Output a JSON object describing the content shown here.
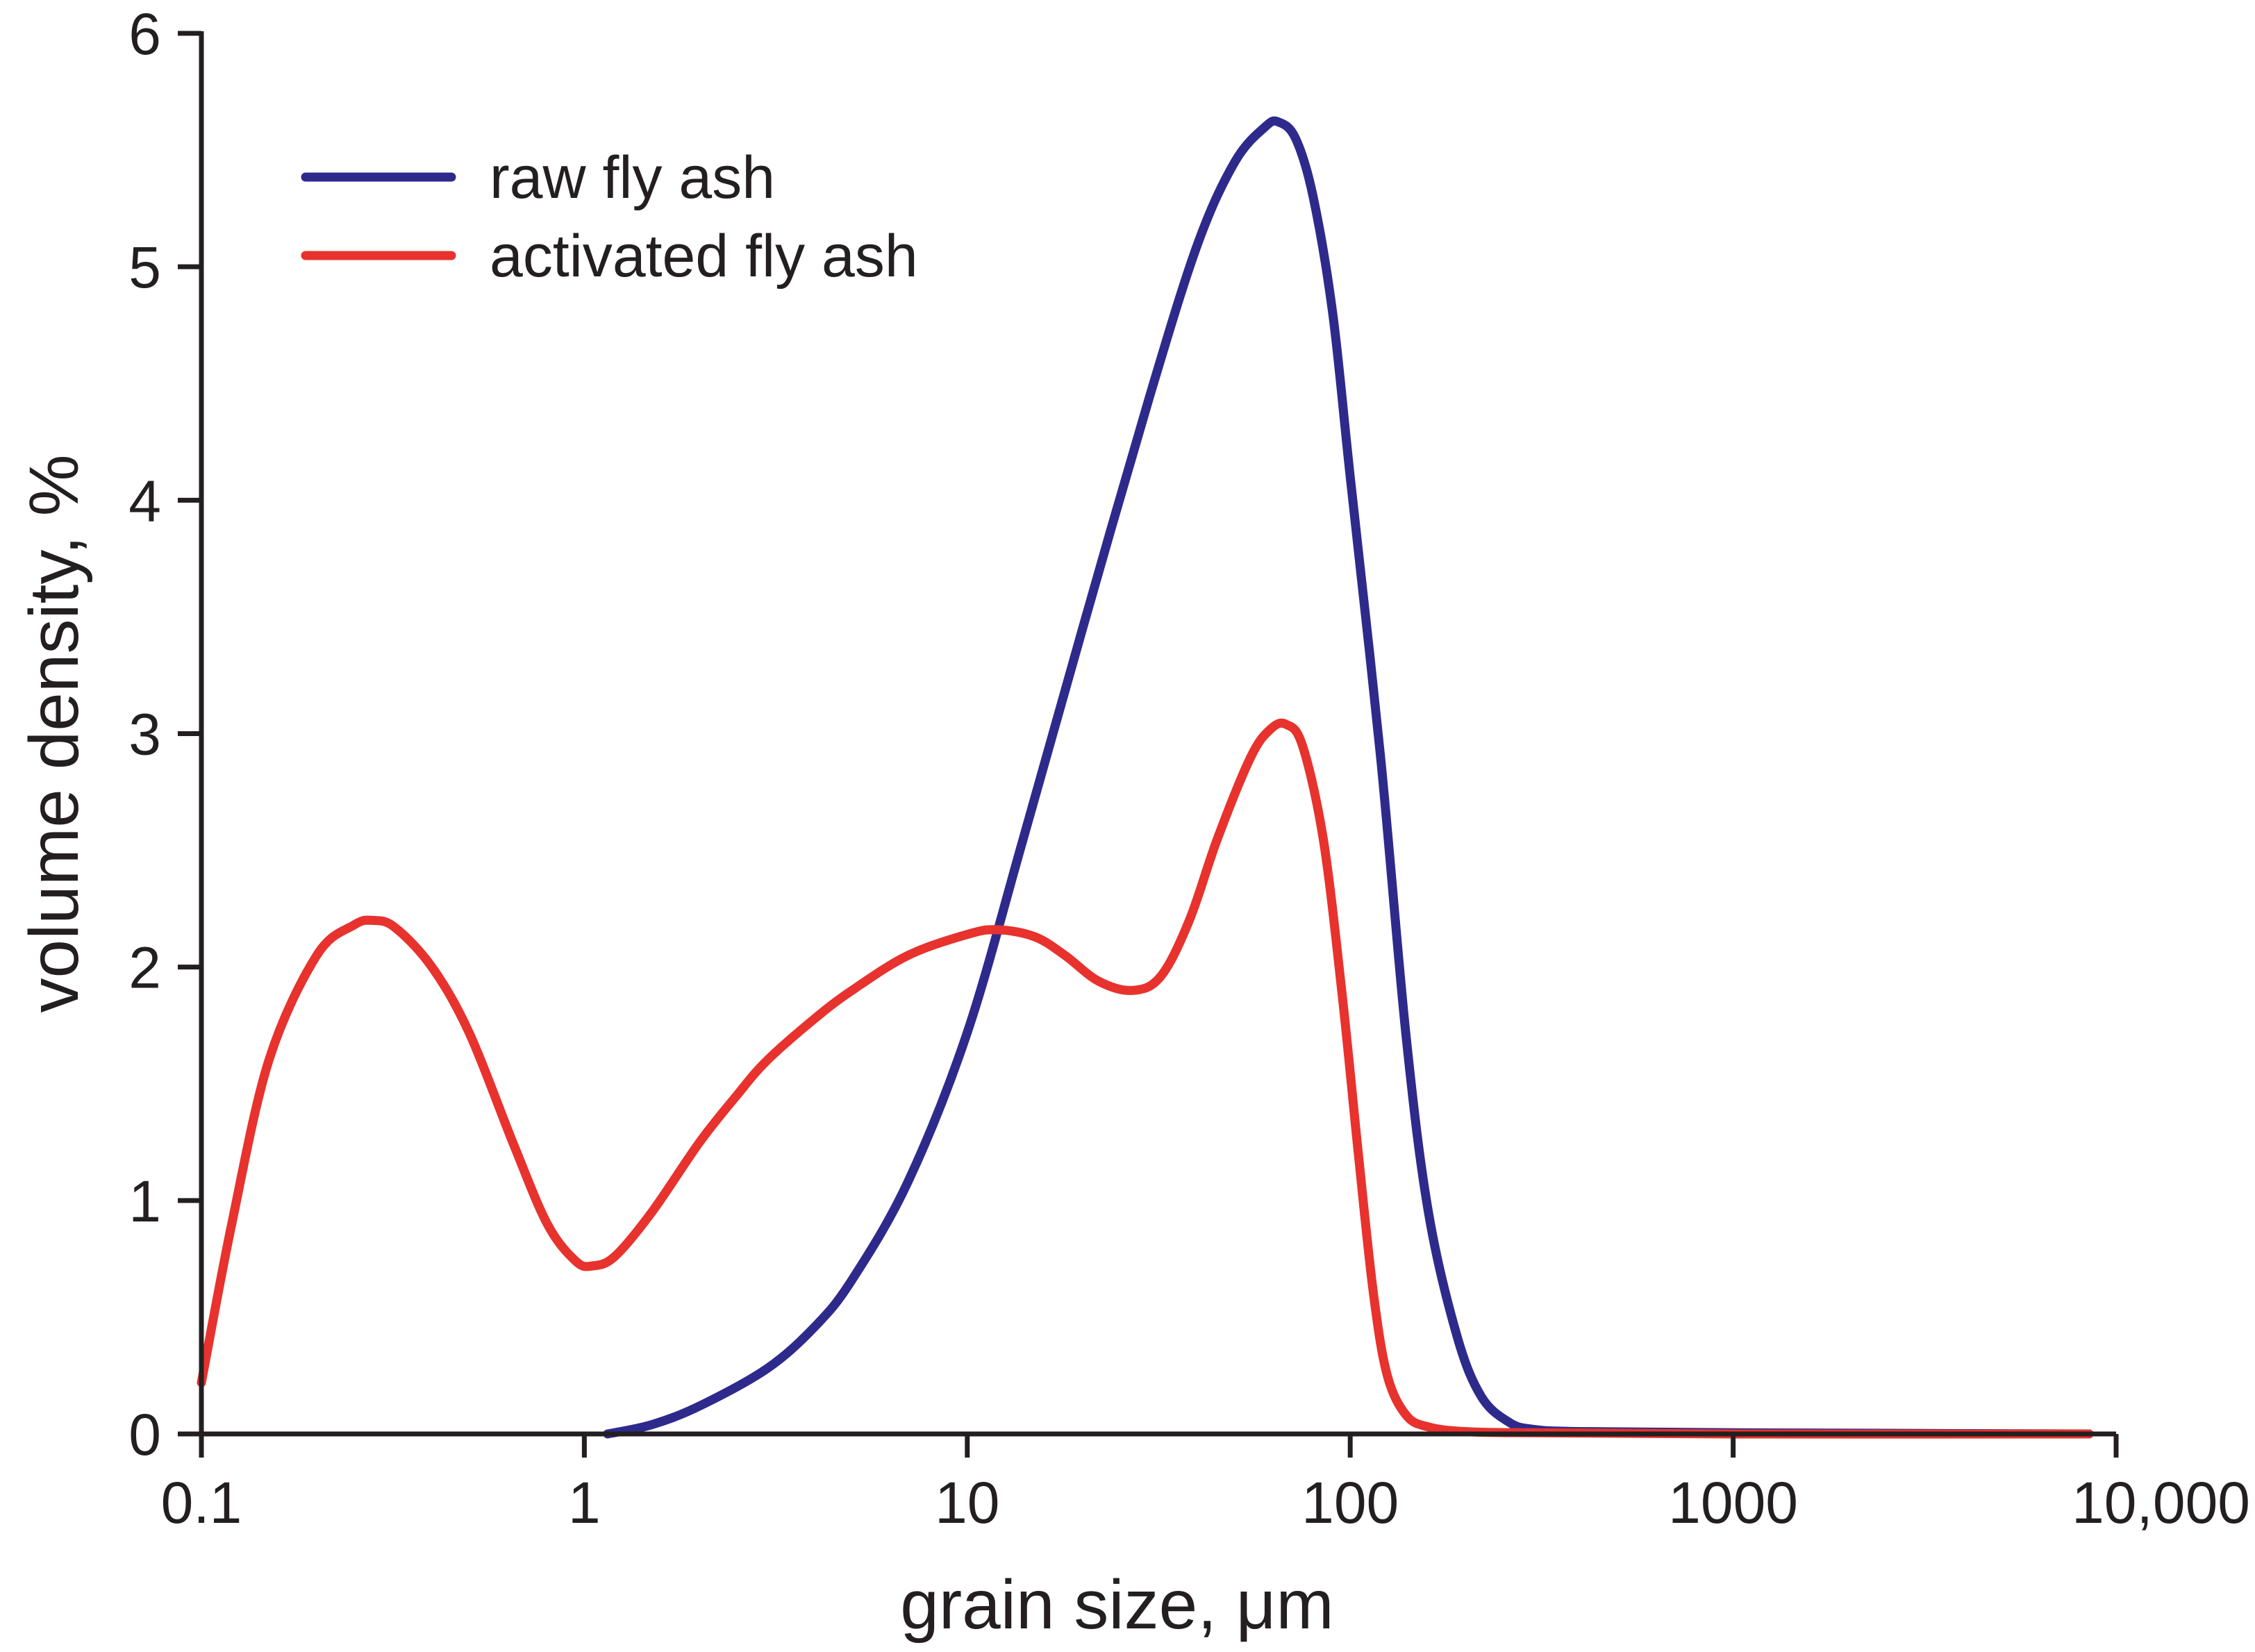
{
  "chart_data": {
    "type": "line",
    "title": "",
    "xlabel": "grain size, μm",
    "ylabel": "volume density, %",
    "xscale": "log",
    "xlim": [
      0.1,
      10000
    ],
    "ylim": [
      0,
      6
    ],
    "grid": false,
    "legend_position": "top-left",
    "x_ticks": [
      {
        "value": 0.1,
        "label": "0.1"
      },
      {
        "value": 1,
        "label": "1"
      },
      {
        "value": 10,
        "label": "10"
      },
      {
        "value": 100,
        "label": "100"
      },
      {
        "value": 1000,
        "label": "1000"
      },
      {
        "value": 10000,
        "label": "10,000"
      }
    ],
    "y_ticks": [
      {
        "value": 0,
        "label": "0"
      },
      {
        "value": 1,
        "label": "1"
      },
      {
        "value": 2,
        "label": "2"
      },
      {
        "value": 3,
        "label": "3"
      },
      {
        "value": 4,
        "label": "4"
      },
      {
        "value": 5,
        "label": "5"
      },
      {
        "value": 6,
        "label": "6"
      }
    ],
    "series": [
      {
        "name": "raw fly ash",
        "color": "#2e2a8c",
        "points": [
          [
            1.15,
            0
          ],
          [
            1.5,
            0.04
          ],
          [
            2,
            0.12
          ],
          [
            3,
            0.28
          ],
          [
            4,
            0.46
          ],
          [
            5,
            0.66
          ],
          [
            7,
            1.08
          ],
          [
            10,
            1.72
          ],
          [
            14,
            2.55
          ],
          [
            20,
            3.45
          ],
          [
            30,
            4.45
          ],
          [
            40,
            5.1
          ],
          [
            50,
            5.45
          ],
          [
            60,
            5.6
          ],
          [
            65,
            5.62
          ],
          [
            72,
            5.55
          ],
          [
            80,
            5.3
          ],
          [
            90,
            4.8
          ],
          [
            100,
            4.1
          ],
          [
            120,
            2.9
          ],
          [
            140,
            1.7
          ],
          [
            160,
            0.95
          ],
          [
            190,
            0.42
          ],
          [
            220,
            0.16
          ],
          [
            260,
            0.05
          ],
          [
            300,
            0.02
          ],
          [
            400,
            0.01
          ],
          [
            1000,
            0.005
          ],
          [
            8500,
            0.0
          ]
        ]
      },
      {
        "name": "activated fly ash",
        "color": "#e8322d",
        "points": [
          [
            0.1,
            0.22
          ],
          [
            0.12,
            0.9
          ],
          [
            0.15,
            1.6
          ],
          [
            0.2,
            2.05
          ],
          [
            0.25,
            2.18
          ],
          [
            0.28,
            2.2
          ],
          [
            0.32,
            2.17
          ],
          [
            0.4,
            2.0
          ],
          [
            0.5,
            1.72
          ],
          [
            0.65,
            1.25
          ],
          [
            0.8,
            0.9
          ],
          [
            0.95,
            0.74
          ],
          [
            1.05,
            0.72
          ],
          [
            1.2,
            0.76
          ],
          [
            1.5,
            0.95
          ],
          [
            2,
            1.25
          ],
          [
            2.5,
            1.45
          ],
          [
            3,
            1.6
          ],
          [
            4,
            1.78
          ],
          [
            5,
            1.9
          ],
          [
            7,
            2.05
          ],
          [
            10,
            2.14
          ],
          [
            12,
            2.16
          ],
          [
            15,
            2.13
          ],
          [
            18,
            2.05
          ],
          [
            22,
            1.94
          ],
          [
            27,
            1.9
          ],
          [
            32,
            1.96
          ],
          [
            38,
            2.2
          ],
          [
            45,
            2.55
          ],
          [
            55,
            2.9
          ],
          [
            62,
            3.02
          ],
          [
            68,
            3.04
          ],
          [
            75,
            2.95
          ],
          [
            85,
            2.55
          ],
          [
            95,
            1.9
          ],
          [
            105,
            1.2
          ],
          [
            115,
            0.6
          ],
          [
            125,
            0.25
          ],
          [
            140,
            0.08
          ],
          [
            160,
            0.03
          ],
          [
            200,
            0.01
          ],
          [
            300,
            0.005
          ],
          [
            1000,
            0.0
          ],
          [
            8500,
            0.0
          ]
        ]
      }
    ]
  }
}
